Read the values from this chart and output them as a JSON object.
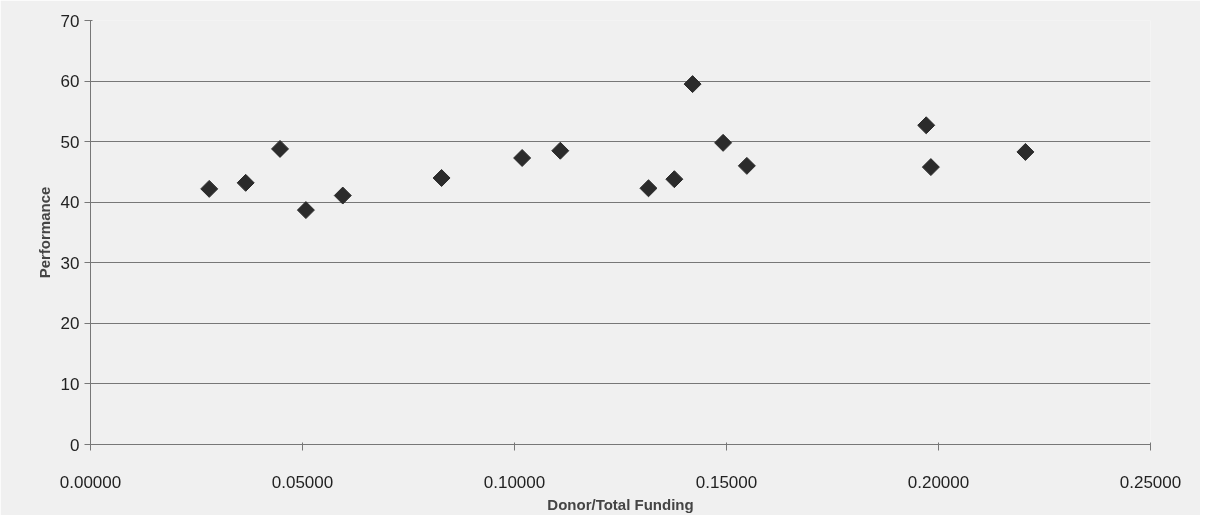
{
  "chart_data": {
    "type": "scatter",
    "xlabel": "Donor/Total Funding",
    "ylabel": "Performance",
    "x": [
      0.028,
      0.0366,
      0.0447,
      0.0508,
      0.0595,
      0.0828,
      0.1018,
      0.1108,
      0.1316,
      0.1377,
      0.142,
      0.1492,
      0.1548,
      0.1971,
      0.1982,
      0.2205
    ],
    "series": [
      {
        "color": "#2b2b2b",
        "values": [
          42.2,
          43.2,
          48.8,
          38.7,
          41.1,
          44.0,
          47.3,
          48.5,
          42.3,
          43.8,
          59.5,
          49.8,
          46.0,
          52.7,
          45.8,
          48.3
        ]
      }
    ],
    "xlim": [
      0,
      0.25
    ],
    "ylim": [
      0,
      70
    ],
    "xticks": [
      {
        "value": 0,
        "label": "0.00000"
      },
      {
        "value": 0.05,
        "label": "0.05000"
      },
      {
        "value": 0.1,
        "label": "0.10000"
      },
      {
        "value": 0.15,
        "label": "0.15000"
      },
      {
        "value": 0.2,
        "label": "0.20000"
      },
      {
        "value": 0.25,
        "label": "0.25000"
      }
    ],
    "yticks": [
      0,
      10,
      20,
      30,
      40,
      50,
      60,
      70
    ],
    "grid": "y",
    "marker": "diamond"
  }
}
